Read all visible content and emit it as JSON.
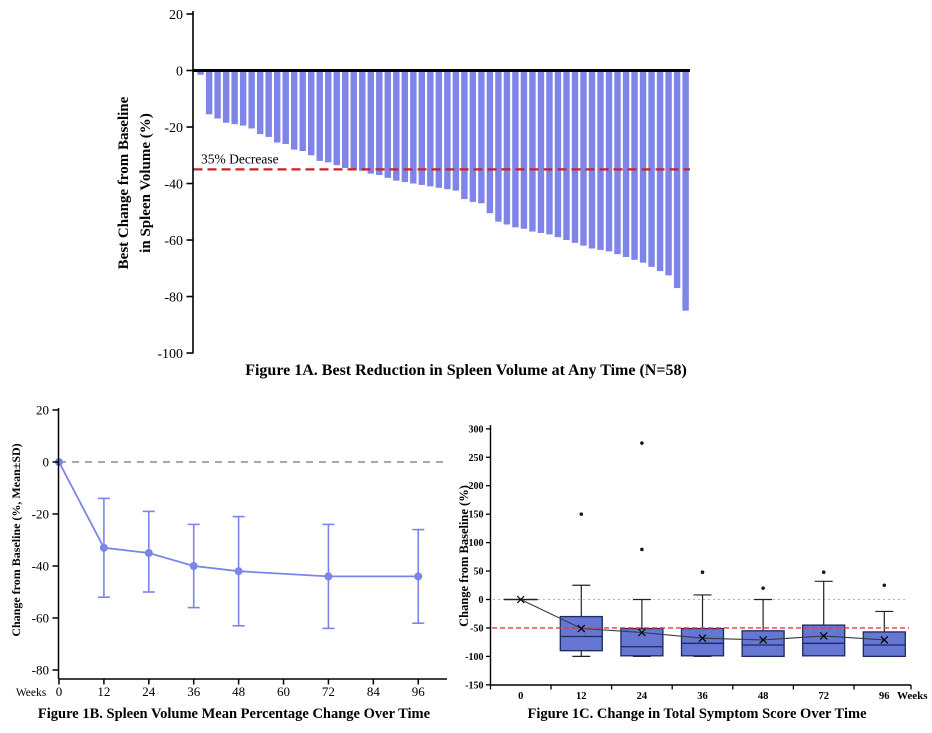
{
  "chart_data": [
    {
      "id": "fig1a",
      "type": "bar",
      "caption": "Figure 1A. Best Reduction in Spleen Volume at Any Time (N=58)",
      "ylabel_lines": [
        "Best Change from Baseline",
        "in Spleen Volume (%)"
      ],
      "ylim": [
        -100,
        20
      ],
      "yticks": [
        20,
        0,
        -20,
        -40,
        -60,
        -80,
        -100
      ],
      "n_patients": 58,
      "bar_color": "#7e84e8",
      "reference_line": {
        "value": -35,
        "label": "35% Decrease",
        "color": "#cc2222",
        "style": "dashed"
      },
      "values": [
        -1.5,
        -15.5,
        -17,
        -18.5,
        -19,
        -19.5,
        -20.5,
        -22.5,
        -23.5,
        -25.5,
        -26,
        -28,
        -28.5,
        -30,
        -32,
        -32.5,
        -33.5,
        -34.5,
        -35,
        -35.5,
        -36.5,
        -37,
        -38,
        -39,
        -39.5,
        -40,
        -40.5,
        -41,
        -41.5,
        -42,
        -42.5,
        -45.5,
        -46.5,
        -47,
        -50.5,
        -53.5,
        -54.5,
        -55.5,
        -56,
        -57,
        -57.5,
        -58,
        -59,
        -60,
        -61,
        -62,
        -63,
        -63.5,
        -64,
        -65,
        -66,
        -67,
        -68,
        -69.5,
        -71,
        -72.5,
        -77,
        -85
      ]
    },
    {
      "id": "fig1b",
      "type": "line",
      "caption": "Figure 1B. Spleen Volume Mean Percentage Change Over Time",
      "ylabel": "Change from Baseline (%, Mean±SD)",
      "xlabel": "Weeks",
      "ylim": [
        -80,
        20
      ],
      "yticks": [
        20,
        0,
        -20,
        -40,
        -60,
        -80
      ],
      "xticks": [
        0,
        12,
        24,
        36,
        48,
        60,
        72,
        84,
        96
      ],
      "line_color": "#7b85e8",
      "zero_line_color": "#8c8c8c",
      "points": [
        {
          "week": 0,
          "mean": 0,
          "sd_low": 0,
          "sd_high": 0
        },
        {
          "week": 12,
          "mean": -33,
          "sd_low": -52,
          "sd_high": -14
        },
        {
          "week": 24,
          "mean": -35,
          "sd_low": -50,
          "sd_high": -19
        },
        {
          "week": 36,
          "mean": -40,
          "sd_low": -56,
          "sd_high": -24
        },
        {
          "week": 48,
          "mean": -42,
          "sd_low": -63,
          "sd_high": -21
        },
        {
          "week": 72,
          "mean": -44,
          "sd_low": -64,
          "sd_high": -24
        },
        {
          "week": 96,
          "mean": -44,
          "sd_low": -62,
          "sd_high": -26
        }
      ]
    },
    {
      "id": "fig1c",
      "type": "boxplot",
      "caption": "Figure 1C. Change in Total Symptom Score Over Time",
      "ylabel": "Change from Baseline (%)",
      "xlabel": "Weeks",
      "ylim": [
        -150,
        300
      ],
      "yticks": [
        300,
        250,
        200,
        150,
        100,
        50,
        0,
        -50,
        -100,
        -150
      ],
      "categories": [
        0,
        12,
        24,
        36,
        48,
        72,
        96
      ],
      "box_fill": "#6577d2",
      "box_border": "#1c2a5e",
      "mean_line_color": "#3a3a3a",
      "reference_lines": [
        {
          "value": 0,
          "color": "#b4b4b4",
          "style": "dotted"
        },
        {
          "value": -50,
          "color": "#d94040",
          "style": "dashed"
        }
      ],
      "boxes": [
        {
          "week": 0,
          "q1": 0,
          "median": 0,
          "q3": 0,
          "mean": 0,
          "whisker_low": 0,
          "whisker_high": 0,
          "outliers": []
        },
        {
          "week": 12,
          "q1": -90,
          "median": -65,
          "q3": -30,
          "mean": -51,
          "whisker_low": -100,
          "whisker_high": 25,
          "outliers": [
            150
          ]
        },
        {
          "week": 24,
          "q1": -99,
          "median": -83,
          "q3": -51,
          "mean": -58,
          "whisker_low": -100,
          "whisker_high": 0,
          "outliers": [
            275,
            88
          ]
        },
        {
          "week": 36,
          "q1": -99,
          "median": -77,
          "q3": -51,
          "mean": -68,
          "whisker_low": -100,
          "whisker_high": 8,
          "outliers": [
            48
          ]
        },
        {
          "week": 48,
          "q1": -100,
          "median": -80,
          "q3": -55,
          "mean": -71,
          "whisker_low": -100,
          "whisker_high": 0,
          "outliers": [
            20
          ]
        },
        {
          "week": 72,
          "q1": -99,
          "median": -77,
          "q3": -45,
          "mean": -64,
          "whisker_low": -98,
          "whisker_high": 32,
          "outliers": [
            48
          ]
        },
        {
          "week": 96,
          "q1": -100,
          "median": -80,
          "q3": -57,
          "mean": -71,
          "whisker_low": -100,
          "whisker_high": -21,
          "outliers": [
            25
          ]
        }
      ]
    }
  ]
}
